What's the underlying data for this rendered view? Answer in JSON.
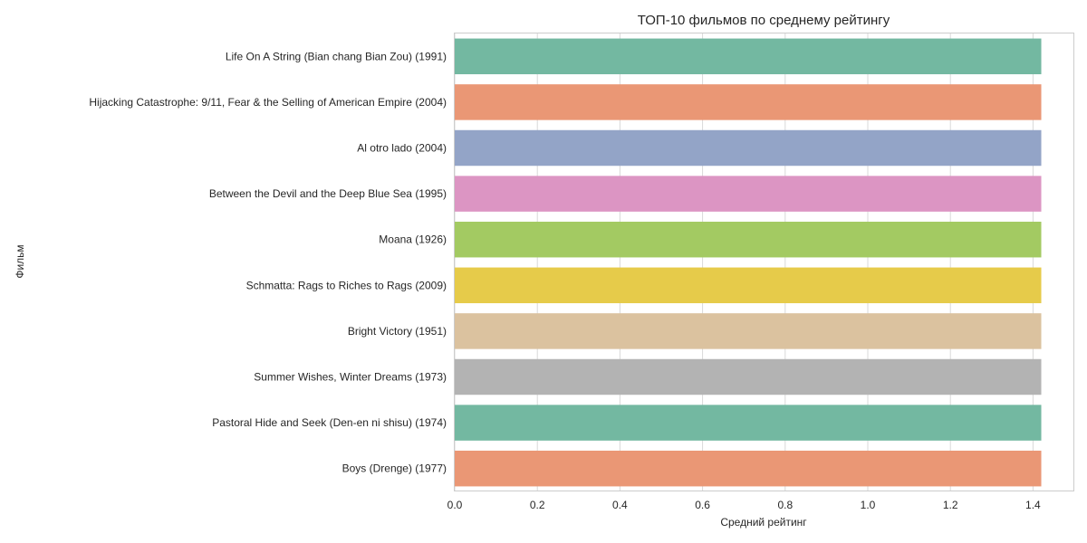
{
  "chart_data": {
    "type": "bar",
    "orientation": "horizontal",
    "title": "ТОП-10 фильмов по среднему рейтингу",
    "xlabel": "Средний рейтинг",
    "ylabel": "Фильм",
    "xlim": [
      0,
      1.5
    ],
    "xticks": [
      "0.0",
      "0.2",
      "0.4",
      "0.6",
      "0.8",
      "1.0",
      "1.2",
      "1.4"
    ],
    "grid": true,
    "categories": [
      "Life On A String (Bian chang Bian Zou) (1991)",
      "Hijacking Catastrophe: 9/11, Fear & the Selling of American Empire (2004)",
      "Al otro lado (2004)",
      "Between the Devil and the Deep Blue Sea (1995)",
      "Moana (1926)",
      "Schmatta: Rags to Riches to Rags (2009)",
      "Bright Victory (1951)",
      "Summer Wishes, Winter Dreams (1973)",
      "Pastoral Hide and Seek (Den-en ni shisu) (1974)",
      "Boys (Drenge) (1977)"
    ],
    "values": [
      1.42,
      1.42,
      1.42,
      1.42,
      1.42,
      1.42,
      1.42,
      1.42,
      1.42,
      1.42
    ],
    "colors": [
      "#73b8a1",
      "#ea9775",
      "#93a4c7",
      "#dc95c3",
      "#a3ca62",
      "#e6cb4a",
      "#dbc29f",
      "#b3b3b3",
      "#73b8a1",
      "#ea9775"
    ]
  }
}
